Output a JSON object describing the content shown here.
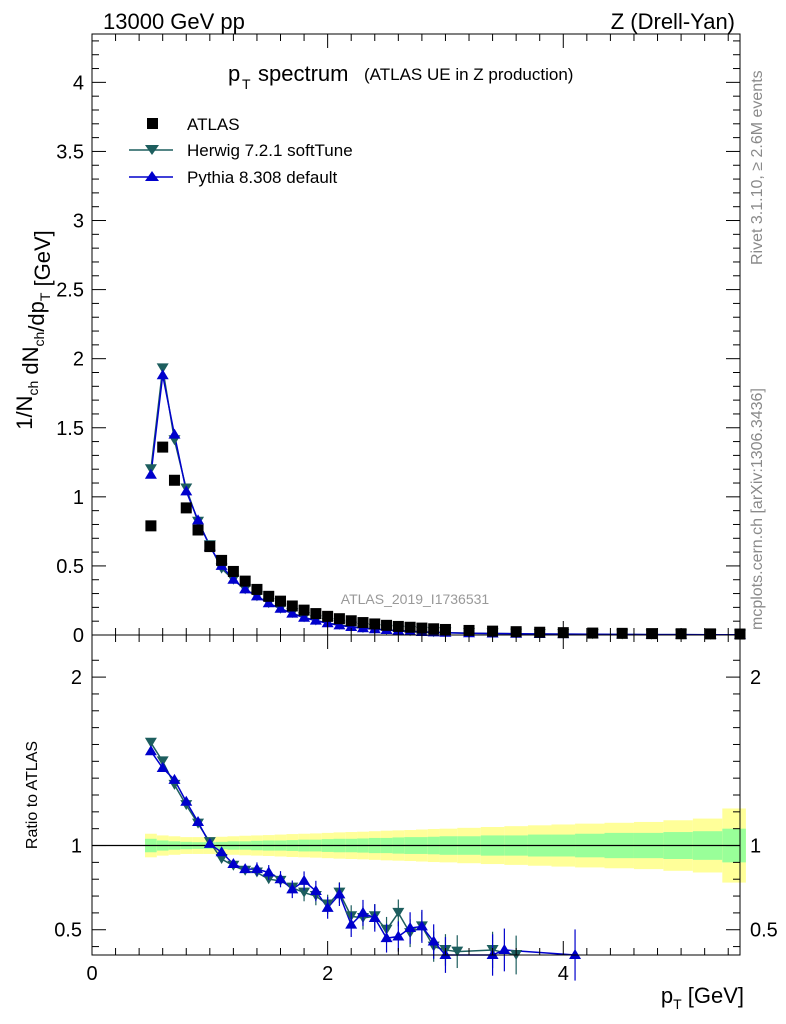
{
  "header": {
    "left": "13000 GeV pp",
    "right": "Z (Drell-Yan)"
  },
  "title": {
    "main": "spectrum",
    "symbol": "p",
    "sub": "T",
    "paren": "(ATLAS UE in Z production)"
  },
  "analysis_id": "ATLAS_2019_I1736531",
  "side_text": {
    "rivet": "Rivet 3.1.10, ≥ 2.6M events",
    "mcplots": "mcplots.cern.ch [arXiv:1306.3436]"
  },
  "axes": {
    "y_main_label": "1/N_ch dN_ch/dp_T [GeV]",
    "y_ratio_label": "Ratio to ATLAS",
    "x_label": "p_T [GeV]"
  },
  "legend": {
    "data_label": "ATLAS",
    "herwig_label": "Herwig 7.2.1 softTune",
    "pythia_label": "Pythia 8.308 default"
  },
  "colors": {
    "data": "#000000",
    "herwig": "#1d5e5e",
    "pythia": "#0000cc",
    "band_inner": "#99ff99",
    "band_outer": "#ffff99"
  },
  "chart_data": [
    {
      "type": "scatter",
      "panel": "main",
      "xlim": [
        0,
        5.5
      ],
      "ylim": [
        0,
        4.35
      ],
      "x_ticks": [
        0,
        2,
        4
      ],
      "y_ticks": [
        0,
        0.5,
        1,
        1.5,
        2,
        2.5,
        3,
        3.5,
        4
      ],
      "y_tick_labels": [
        "0",
        "0.5",
        "1",
        "1.5",
        "2",
        "2.5",
        "3",
        "3.5",
        "4"
      ],
      "series": [
        {
          "name": "ATLAS",
          "x": [
            0.5,
            0.6,
            0.7,
            0.8,
            0.9,
            1.0,
            1.1,
            1.2,
            1.3,
            1.4,
            1.5,
            1.6,
            1.7,
            1.8,
            1.9,
            2.0,
            2.1,
            2.2,
            2.3,
            2.4,
            2.5,
            2.6,
            2.7,
            2.8,
            2.9,
            3.0,
            3.2,
            3.4,
            3.6,
            3.8,
            4.0,
            4.25,
            4.5,
            4.75,
            5.0,
            5.25,
            5.5
          ],
          "y": [
            0.79,
            1.36,
            1.12,
            0.92,
            0.76,
            0.64,
            0.54,
            0.46,
            0.39,
            0.33,
            0.28,
            0.245,
            0.21,
            0.18,
            0.155,
            0.135,
            0.118,
            0.103,
            0.09,
            0.08,
            0.07,
            0.062,
            0.056,
            0.05,
            0.045,
            0.04,
            0.033,
            0.028,
            0.024,
            0.02,
            0.017,
            0.014,
            0.012,
            0.01,
            0.009,
            0.008,
            0.007
          ]
        },
        {
          "name": "Herwig 7.2.1 softTune",
          "x": [
            0.5,
            0.6,
            0.7,
            0.8,
            0.9,
            1.0,
            1.1,
            1.2,
            1.3,
            1.4,
            1.5,
            1.6,
            1.7,
            1.8,
            1.9,
            2.0,
            2.1,
            2.2,
            2.3,
            2.4,
            2.5,
            2.6,
            2.7,
            2.8,
            2.9,
            3.0,
            3.2,
            3.4,
            3.6,
            3.8,
            4.0,
            4.25,
            4.5,
            4.75,
            5.0,
            5.25,
            5.5
          ],
          "y": [
            1.2,
            1.93,
            1.41,
            1.06,
            0.82,
            0.65,
            0.48,
            0.4,
            0.33,
            0.28,
            0.23,
            0.19,
            0.158,
            0.128,
            0.105,
            0.087,
            0.073,
            0.06,
            0.05,
            0.043,
            0.037,
            0.032,
            0.027,
            0.023,
            0.02,
            0.017,
            0.013,
            0.011,
            0.009,
            0.007,
            0.006,
            0.005,
            0.004,
            0.003,
            0.003,
            0.002,
            0.002
          ]
        },
        {
          "name": "Pythia 8.308 default",
          "x": [
            0.5,
            0.6,
            0.7,
            0.8,
            0.9,
            1.0,
            1.1,
            1.2,
            1.3,
            1.4,
            1.5,
            1.6,
            1.7,
            1.8,
            1.9,
            2.0,
            2.1,
            2.2,
            2.3,
            2.4,
            2.5,
            2.6,
            2.7,
            2.8,
            2.9,
            3.0,
            3.2,
            3.4,
            3.6,
            3.8,
            4.0,
            4.25,
            4.5,
            4.75,
            5.0,
            5.25,
            5.5
          ],
          "y": [
            1.16,
            1.88,
            1.45,
            1.04,
            0.83,
            0.64,
            0.5,
            0.4,
            0.33,
            0.28,
            0.23,
            0.19,
            0.155,
            0.125,
            0.104,
            0.085,
            0.07,
            0.058,
            0.049,
            0.042,
            0.036,
            0.031,
            0.026,
            0.022,
            0.019,
            0.016,
            0.013,
            0.011,
            0.009,
            0.007,
            0.006,
            0.005,
            0.004,
            0.003,
            0.003,
            0.002,
            0.002
          ]
        }
      ]
    },
    {
      "type": "line",
      "panel": "ratio",
      "xlim": [
        0,
        5.5
      ],
      "ylim": [
        0.35,
        2.25
      ],
      "x_ticks": [
        0,
        2,
        4
      ],
      "x_tick_labels": [
        "0",
        "2",
        "4"
      ],
      "y_ticks": [
        0.5,
        1,
        2
      ],
      "y_tick_labels": [
        "0.5",
        "1",
        "2"
      ],
      "reference_line": 1,
      "uncertainty_band": {
        "x_edges": [
          0.45,
          0.55,
          0.65,
          0.75,
          0.85,
          0.95,
          1.05,
          1.15,
          1.25,
          1.35,
          1.45,
          1.55,
          1.65,
          1.75,
          1.85,
          1.95,
          2.05,
          2.15,
          2.25,
          2.35,
          2.45,
          2.55,
          2.65,
          2.75,
          2.85,
          2.95,
          3.1,
          3.3,
          3.5,
          3.7,
          3.9,
          4.1,
          4.35,
          4.6,
          4.85,
          5.1,
          5.35,
          5.55
        ],
        "inner": [
          0.04,
          0.03,
          0.025,
          0.022,
          0.02,
          0.02,
          0.022,
          0.025,
          0.025,
          0.028,
          0.03,
          0.03,
          0.032,
          0.035,
          0.035,
          0.038,
          0.04,
          0.04,
          0.042,
          0.045,
          0.045,
          0.048,
          0.05,
          0.05,
          0.052,
          0.055,
          0.055,
          0.06,
          0.06,
          0.065,
          0.065,
          0.07,
          0.075,
          0.075,
          0.08,
          0.085,
          0.1
        ],
        "outer": [
          0.07,
          0.06,
          0.055,
          0.05,
          0.05,
          0.05,
          0.052,
          0.055,
          0.058,
          0.06,
          0.062,
          0.065,
          0.068,
          0.07,
          0.072,
          0.075,
          0.078,
          0.08,
          0.082,
          0.085,
          0.088,
          0.09,
          0.092,
          0.095,
          0.098,
          0.1,
          0.105,
          0.11,
          0.115,
          0.12,
          0.125,
          0.13,
          0.135,
          0.14,
          0.15,
          0.16,
          0.22
        ]
      },
      "series": [
        {
          "name": "Herwig 7.2.1 softTune",
          "x": [
            0.5,
            0.6,
            0.7,
            0.8,
            0.9,
            1.0,
            1.1,
            1.2,
            1.3,
            1.4,
            1.5,
            1.6,
            1.7,
            1.8,
            1.9,
            2.0,
            2.1,
            2.2,
            2.3,
            2.4,
            2.5,
            2.6,
            2.7,
            2.8,
            2.9,
            3.0,
            3.1,
            3.4,
            3.6
          ],
          "y": [
            1.61,
            1.5,
            1.36,
            1.24,
            1.13,
            1.02,
            0.92,
            0.88,
            0.85,
            0.84,
            0.8,
            0.79,
            0.75,
            0.72,
            0.7,
            0.65,
            0.72,
            0.58,
            0.57,
            0.58,
            0.5,
            0.6,
            0.48,
            0.52,
            0.4,
            0.38,
            0.37,
            0.38,
            0.35
          ]
        },
        {
          "name": "Pythia 8.308 default",
          "x": [
            0.5,
            0.6,
            0.7,
            0.8,
            0.9,
            1.0,
            1.1,
            1.2,
            1.3,
            1.4,
            1.5,
            1.6,
            1.7,
            1.8,
            1.9,
            2.0,
            2.1,
            2.2,
            2.3,
            2.4,
            2.5,
            2.6,
            2.7,
            2.8,
            2.9,
            3.0,
            3.4,
            3.5,
            4.1
          ],
          "y": [
            1.56,
            1.46,
            1.39,
            1.26,
            1.14,
            1.01,
            0.96,
            0.89,
            0.86,
            0.86,
            0.84,
            0.8,
            0.74,
            0.79,
            0.73,
            0.63,
            0.71,
            0.53,
            0.6,
            0.57,
            0.45,
            0.46,
            0.51,
            0.52,
            0.43,
            0.35,
            0.35,
            0.38,
            0.35
          ]
        }
      ]
    }
  ]
}
